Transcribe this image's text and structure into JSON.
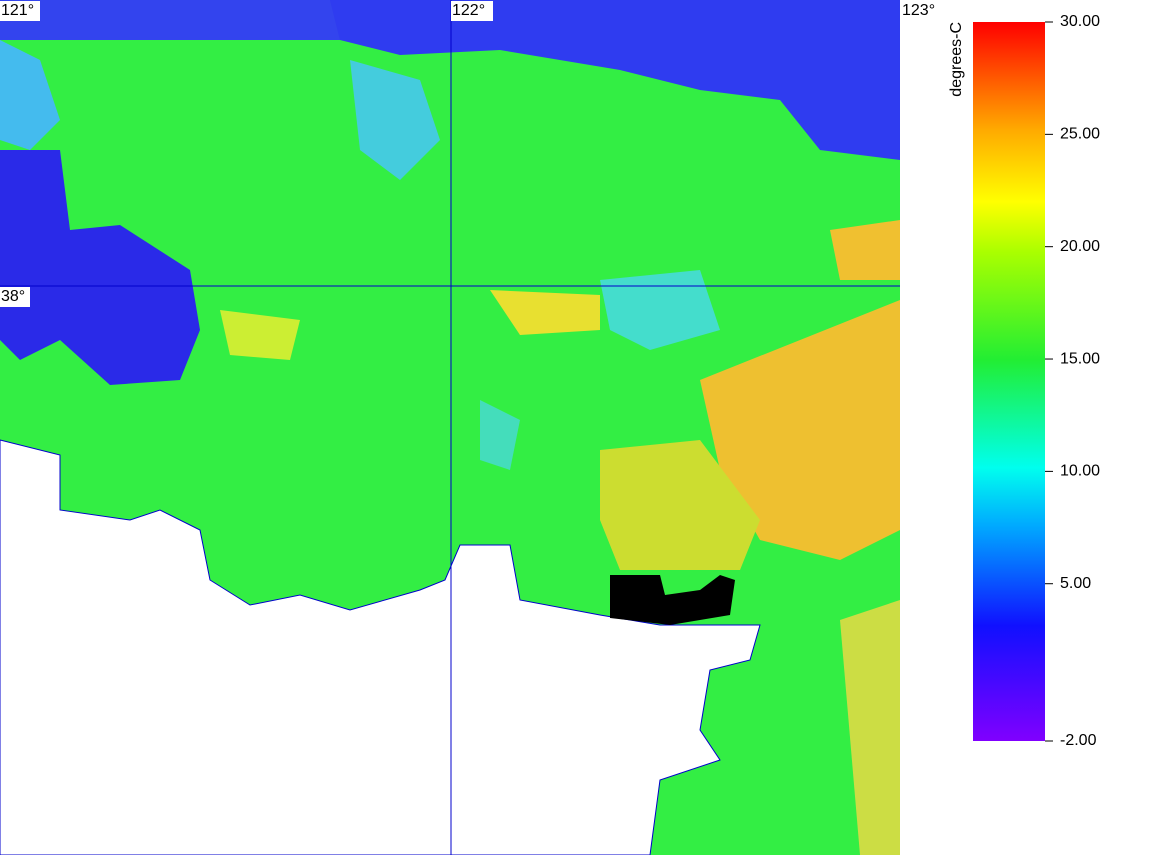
{
  "map": {
    "lon_labels": [
      "121°",
      "122°",
      "123°"
    ],
    "lat_labels": [
      "38°"
    ]
  },
  "colorbar": {
    "title": "degrees-C",
    "lim": [
      -2,
      30
    ],
    "ticks": [
      {
        "value": 30,
        "label": "30.00"
      },
      {
        "value": 25,
        "label": "25.00"
      },
      {
        "value": 20,
        "label": "20.00"
      },
      {
        "value": 15,
        "label": "15.00"
      },
      {
        "value": 10,
        "label": "10.00"
      },
      {
        "value": 5,
        "label": "5.00"
      },
      {
        "value": -2,
        "label": "-2.00"
      }
    ]
  }
}
